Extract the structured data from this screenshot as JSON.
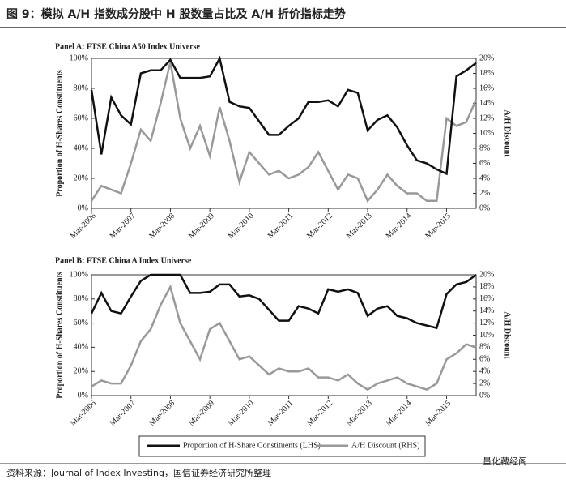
{
  "header": {
    "title": "图 9：模拟 A/H 指数成分股中 H 股数量占比及 A/H 折价指标走势"
  },
  "footer": {
    "source": "资料来源：Journal of Index Investing，国信证券经济研究所整理",
    "watermark": "量化藏经阁"
  },
  "chart_data": [
    {
      "type": "line",
      "title": "Panel A: FTSE China A50 Index Universe",
      "ylabel": "Proportion of H-Shares Constituents",
      "y2label": "A/H Discount",
      "categories": [
        "Mar-2006",
        null,
        null,
        null,
        "Mar-2007",
        null,
        null,
        null,
        "Mar-2008",
        null,
        null,
        null,
        "Mar-2009",
        null,
        null,
        null,
        "Mar-2010",
        null,
        null,
        null,
        "Mar-2011",
        null,
        null,
        null,
        "Mar-2012",
        null,
        null,
        null,
        "Mar-2013",
        null,
        null,
        null,
        "Mar-2014",
        null,
        null,
        null,
        "Mar-2015",
        null,
        null,
        null
      ],
      "ylim": [
        0,
        100
      ],
      "yticks": [
        {
          "value": 0,
          "label": "0%"
        },
        {
          "value": 20,
          "label": "20%"
        },
        {
          "value": 40,
          "label": "40%"
        },
        {
          "value": 60,
          "label": "60%"
        },
        {
          "value": 80,
          "label": "80%"
        },
        {
          "value": 100,
          "label": "100%"
        }
      ],
      "y2lim": [
        0,
        20
      ],
      "y2ticks": [
        {
          "value": 0,
          "label": "0%"
        },
        {
          "value": 2,
          "label": "2%"
        },
        {
          "value": 4,
          "label": "4%"
        },
        {
          "value": 6,
          "label": "6%"
        },
        {
          "value": 8,
          "label": "8%"
        },
        {
          "value": 10,
          "label": "10%"
        },
        {
          "value": 12,
          "label": "12%"
        },
        {
          "value": 14,
          "label": "14%"
        },
        {
          "value": 16,
          "label": "16%"
        },
        {
          "value": 18,
          "label": "18%"
        },
        {
          "value": 20,
          "label": "20%"
        }
      ],
      "series": [
        {
          "name": "Proportion of H-Share Constituents (LHS)",
          "color": "#111111",
          "values": [
            79,
            36,
            74,
            62,
            56,
            90,
            92,
            92,
            99,
            87,
            87,
            87,
            88,
            100,
            71,
            68,
            67,
            58,
            49,
            49,
            55,
            60,
            71,
            71,
            72,
            68,
            79,
            77,
            52,
            59,
            62,
            54,
            42,
            32,
            30,
            26,
            23,
            88,
            92,
            97
          ]
        },
        {
          "name": "A/H Discount (RHS)",
          "color": "#999999",
          "axis": "y2",
          "values": [
            1,
            3,
            2.5,
            2,
            6,
            10.5,
            9,
            14,
            19.5,
            12,
            8,
            11,
            7,
            13.5,
            9,
            3.5,
            7.5,
            6,
            4.5,
            5,
            4,
            4.5,
            5.5,
            7.5,
            5,
            2.5,
            4.5,
            4,
            1,
            2.5,
            4.5,
            3,
            2,
            2,
            1,
            1,
            12,
            11,
            11.5,
            14.5
          ]
        }
      ]
    },
    {
      "type": "line",
      "title": "Panel B: FTSE China A Index Universe",
      "ylabel": "Proportion of H-Shares Constituents",
      "y2label": "A/H Discount",
      "categories": [
        "Mar-2006",
        null,
        null,
        null,
        "Mar-2007",
        null,
        null,
        null,
        "Mar-2008",
        null,
        null,
        null,
        "Mar-2009",
        null,
        null,
        null,
        "Mar-2010",
        null,
        null,
        null,
        "Mar-2011",
        null,
        null,
        null,
        "Mar-2012",
        null,
        null,
        null,
        "Mar-2013",
        null,
        null,
        null,
        "Mar-2014",
        null,
        null,
        null,
        "Mar-2015",
        null,
        null,
        null
      ],
      "ylim": [
        0,
        100
      ],
      "yticks": [
        {
          "value": 0,
          "label": "0%"
        },
        {
          "value": 20,
          "label": "20%"
        },
        {
          "value": 40,
          "label": "40%"
        },
        {
          "value": 60,
          "label": "60%"
        },
        {
          "value": 80,
          "label": "80%"
        },
        {
          "value": 100,
          "label": "100%"
        }
      ],
      "y2lim": [
        0,
        20
      ],
      "y2ticks": [
        {
          "value": 0,
          "label": "0%"
        },
        {
          "value": 2,
          "label": "2%"
        },
        {
          "value": 4,
          "label": "4%"
        },
        {
          "value": 6,
          "label": "6%"
        },
        {
          "value": 8,
          "label": "8%"
        },
        {
          "value": 10,
          "label": "10%"
        },
        {
          "value": 12,
          "label": "12%"
        },
        {
          "value": 14,
          "label": "14%"
        },
        {
          "value": 16,
          "label": "16%"
        },
        {
          "value": 18,
          "label": "18%"
        },
        {
          "value": 20,
          "label": "20%"
        }
      ],
      "series": [
        {
          "color": "#111111",
          "values": [
            68,
            85,
            70,
            68,
            82,
            95,
            100,
            100,
            100,
            100,
            85,
            85,
            86,
            92,
            92,
            82,
            83,
            80,
            71,
            62,
            62,
            74,
            72,
            68,
            88,
            86,
            88,
            85,
            66,
            72,
            74,
            66,
            64,
            60,
            58,
            56,
            84,
            92,
            94,
            100
          ]
        },
        {
          "color": "#999999",
          "axis": "y2",
          "values": [
            1.5,
            2.5,
            2,
            2,
            5,
            9,
            11,
            15,
            18,
            12,
            9,
            6,
            11,
            12,
            9,
            6,
            6.5,
            5,
            3.5,
            4.5,
            4,
            4,
            4.5,
            3,
            3,
            2.5,
            3.5,
            2,
            1,
            2,
            2.5,
            3,
            2,
            1.5,
            1,
            2,
            6,
            7,
            8.5,
            8
          ]
        }
      ]
    }
  ]
}
